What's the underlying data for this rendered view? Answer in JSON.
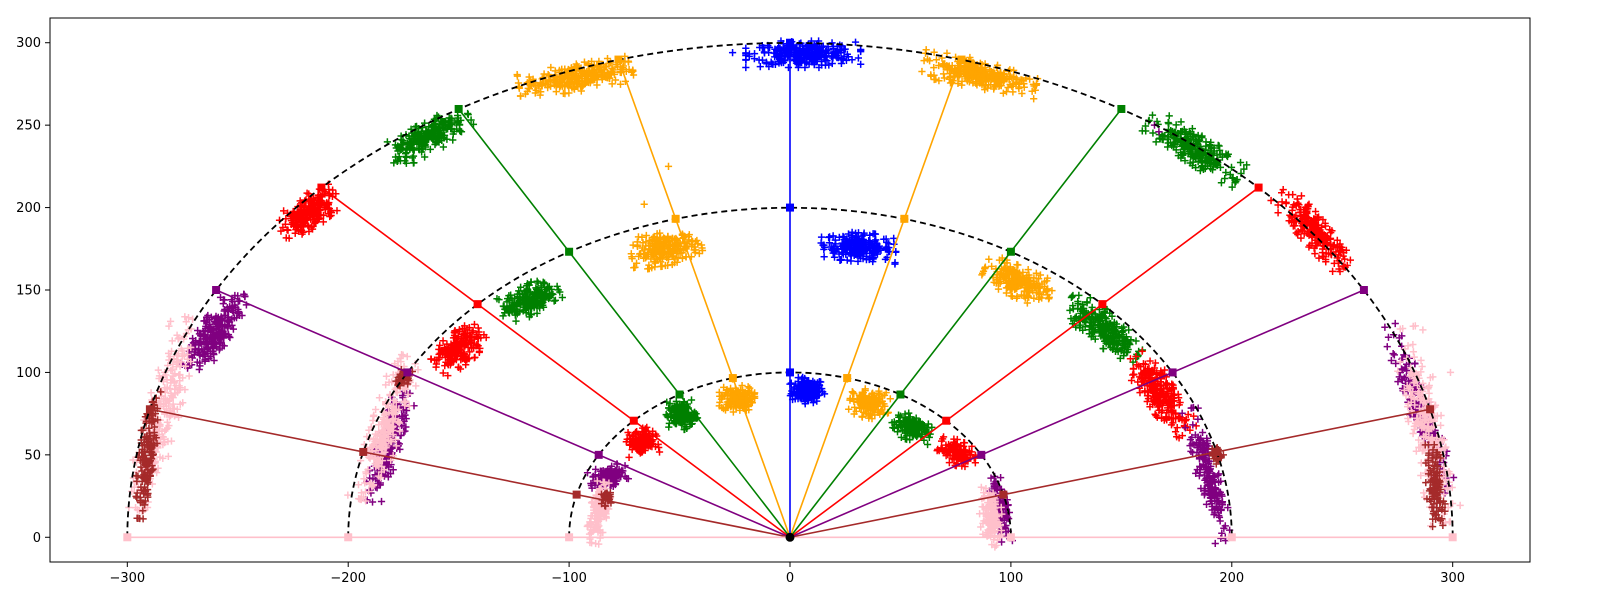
{
  "chart_data": {
    "type": "scatter",
    "title": "",
    "xlabel": "",
    "ylabel": "",
    "xlim": [
      -335,
      335
    ],
    "ylim": [
      -15,
      315
    ],
    "x_ticks": [
      -300,
      -200,
      -100,
      0,
      100,
      200,
      300
    ],
    "y_ticks": [
      0,
      50,
      100,
      150,
      200,
      250,
      300
    ],
    "x_tick_labels": [
      "−300",
      "−200",
      "−100",
      "0",
      "100",
      "200",
      "300"
    ],
    "y_tick_labels": [
      "0",
      "50",
      "100",
      "150",
      "200",
      "250",
      "300"
    ],
    "grid": false,
    "legend": "none",
    "origin": [
      0,
      0
    ],
    "radii": [
      100,
      200,
      300
    ],
    "rays": [
      {
        "angle_deg": 0,
        "color": "#ffc0cb"
      },
      {
        "angle_deg": 15,
        "color": "#a52a2a"
      },
      {
        "angle_deg": 30,
        "color": "#800080"
      },
      {
        "angle_deg": 45,
        "color": "#ff0000"
      },
      {
        "angle_deg": 60,
        "color": "#008000"
      },
      {
        "angle_deg": 75,
        "color": "#ffa500"
      },
      {
        "angle_deg": 90,
        "color": "#0000ff"
      },
      {
        "angle_deg": 105,
        "color": "#ffa500"
      },
      {
        "angle_deg": 120,
        "color": "#008000"
      },
      {
        "angle_deg": 135,
        "color": "#ff0000"
      },
      {
        "angle_deg": 150,
        "color": "#800080"
      },
      {
        "angle_deg": 165,
        "color": "#a52a2a"
      },
      {
        "angle_deg": 180,
        "color": "#ffc0cb"
      }
    ],
    "clusters": [
      {
        "color": "#0000ff",
        "x": 8,
        "y": 89,
        "w": 16,
        "h": 12,
        "rot": 0,
        "n": 160
      },
      {
        "color": "#0000ff",
        "x": 31,
        "y": 176,
        "w": 34,
        "h": 13,
        "rot": -4,
        "n": 230
      },
      {
        "color": "#0000ff",
        "x": 6,
        "y": 293,
        "w": 52,
        "h": 12,
        "rot": 0,
        "n": 300
      },
      {
        "color": "#ffa500",
        "x": -24,
        "y": 84,
        "w": 16,
        "h": 12,
        "rot": 0,
        "n": 150
      },
      {
        "color": "#ffa500",
        "x": 36,
        "y": 81,
        "w": 18,
        "h": 13,
        "rot": -8,
        "n": 150
      },
      {
        "color": "#ffa500",
        "x": -56,
        "y": 175,
        "w": 32,
        "h": 15,
        "rot": 10,
        "n": 220
      },
      {
        "color": "#ffa500",
        "x": 103,
        "y": 155,
        "w": 32,
        "h": 14,
        "rot": -24,
        "n": 220
      },
      {
        "color": "#ffa500",
        "x": -97,
        "y": 279,
        "w": 52,
        "h": 13,
        "rot": 9,
        "n": 280
      },
      {
        "color": "#ffa500",
        "x": 86,
        "y": 281,
        "w": 52,
        "h": 13,
        "rot": -11,
        "n": 280
      },
      {
        "color": "#008000",
        "x": -49,
        "y": 74,
        "w": 14,
        "h": 13,
        "rot": 5,
        "n": 140
      },
      {
        "color": "#008000",
        "x": 55,
        "y": 67,
        "w": 18,
        "h": 12,
        "rot": -14,
        "n": 140
      },
      {
        "color": "#008000",
        "x": -118,
        "y": 144,
        "w": 28,
        "h": 14,
        "rot": 25,
        "n": 200
      },
      {
        "color": "#008000",
        "x": 142,
        "y": 127,
        "w": 40,
        "h": 15,
        "rot": -38,
        "n": 230
      },
      {
        "color": "#008000",
        "x": -163,
        "y": 243,
        "w": 40,
        "h": 14,
        "rot": 28,
        "n": 240
      },
      {
        "color": "#008000",
        "x": 183,
        "y": 236,
        "w": 48,
        "h": 14,
        "rot": -33,
        "n": 250
      },
      {
        "color": "#ff0000",
        "x": -67,
        "y": 58,
        "w": 14,
        "h": 12,
        "rot": 10,
        "n": 130
      },
      {
        "color": "#ff0000",
        "x": 76,
        "y": 51,
        "w": 18,
        "h": 11,
        "rot": -25,
        "n": 130
      },
      {
        "color": "#ff0000",
        "x": -150,
        "y": 114,
        "w": 26,
        "h": 15,
        "rot": 40,
        "n": 190
      },
      {
        "color": "#ff0000",
        "x": 168,
        "y": 87,
        "w": 42,
        "h": 15,
        "rot": -55,
        "n": 240
      },
      {
        "color": "#ff0000",
        "x": -218,
        "y": 197,
        "w": 30,
        "h": 15,
        "rot": 38,
        "n": 220
      },
      {
        "color": "#ff0000",
        "x": 237,
        "y": 186,
        "w": 46,
        "h": 13,
        "rot": -48,
        "n": 240
      },
      {
        "color": "#800080",
        "x": -82,
        "y": 37,
        "w": 18,
        "h": 10,
        "rot": 20,
        "n": 120
      },
      {
        "color": "#800080",
        "x": 95,
        "y": 17,
        "w": 30,
        "h": 8,
        "rot": -80,
        "n": 120
      },
      {
        "color": "#800080",
        "x": -182,
        "y": 55,
        "w": 52,
        "h": 11,
        "rot": 72,
        "n": 190
      },
      {
        "color": "#800080",
        "x": 189,
        "y": 38,
        "w": 62,
        "h": 10,
        "rot": -75,
        "n": 190
      },
      {
        "color": "#800080",
        "x": -260,
        "y": 125,
        "w": 42,
        "h": 14,
        "rot": 55,
        "n": 230
      },
      {
        "color": "#800080",
        "x": 285,
        "y": 78,
        "w": 80,
        "h": 10,
        "rot": -70,
        "n": 190
      },
      {
        "color": "#ffc0cb",
        "x": -87,
        "y": 15,
        "w": 28,
        "h": 10,
        "rot": 80,
        "n": 130
      },
      {
        "color": "#ffc0cb",
        "x": 91,
        "y": 12,
        "w": 28,
        "h": 10,
        "rot": -85,
        "n": 130
      },
      {
        "color": "#ffc0cb",
        "x": -183,
        "y": 66,
        "w": 68,
        "h": 14,
        "rot": 72,
        "n": 230
      },
      {
        "color": "#ffc0cb",
        "x": 288,
        "y": 68,
        "w": 90,
        "h": 15,
        "rot": -78,
        "n": 250
      },
      {
        "color": "#ffc0cb",
        "x": -284,
        "y": 75,
        "w": 90,
        "h": 15,
        "rot": 75,
        "n": 220
      },
      {
        "color": "#a52a2a",
        "x": -291,
        "y": 50,
        "w": 58,
        "h": 8,
        "rot": 84,
        "n": 160
      },
      {
        "color": "#a52a2a",
        "x": 292,
        "y": 30,
        "w": 40,
        "h": 8,
        "rot": -86,
        "n": 110
      },
      {
        "color": "#a52a2a",
        "x": -175,
        "y": 96,
        "w": 10,
        "h": 6,
        "rot": 60,
        "n": 40
      },
      {
        "color": "#a52a2a",
        "x": -83,
        "y": 24,
        "w": 8,
        "h": 6,
        "rot": 70,
        "n": 30
      },
      {
        "color": "#a52a2a",
        "x": 193,
        "y": 50,
        "w": 8,
        "h": 6,
        "rot": -70,
        "n": 30
      }
    ],
    "outliers": [
      {
        "color": "#ffa500",
        "x": -55,
        "y": 225
      },
      {
        "color": "#ffa500",
        "x": -66,
        "y": 202
      },
      {
        "color": "#ffa500",
        "x": -52,
        "y": 193
      },
      {
        "color": "#ffa500",
        "x": -26,
        "y": 96
      },
      {
        "color": "#ffa500",
        "x": 26,
        "y": 96
      },
      {
        "color": "#ffa500",
        "x": 52,
        "y": 193
      },
      {
        "color": "#800080",
        "x": 165,
        "y": 250
      },
      {
        "color": "#800080",
        "x": 167,
        "y": 246
      },
      {
        "color": "#ffc0cb",
        "x": 299,
        "y": 100
      },
      {
        "color": "#0000ff",
        "x": -26,
        "y": 294
      }
    ]
  }
}
